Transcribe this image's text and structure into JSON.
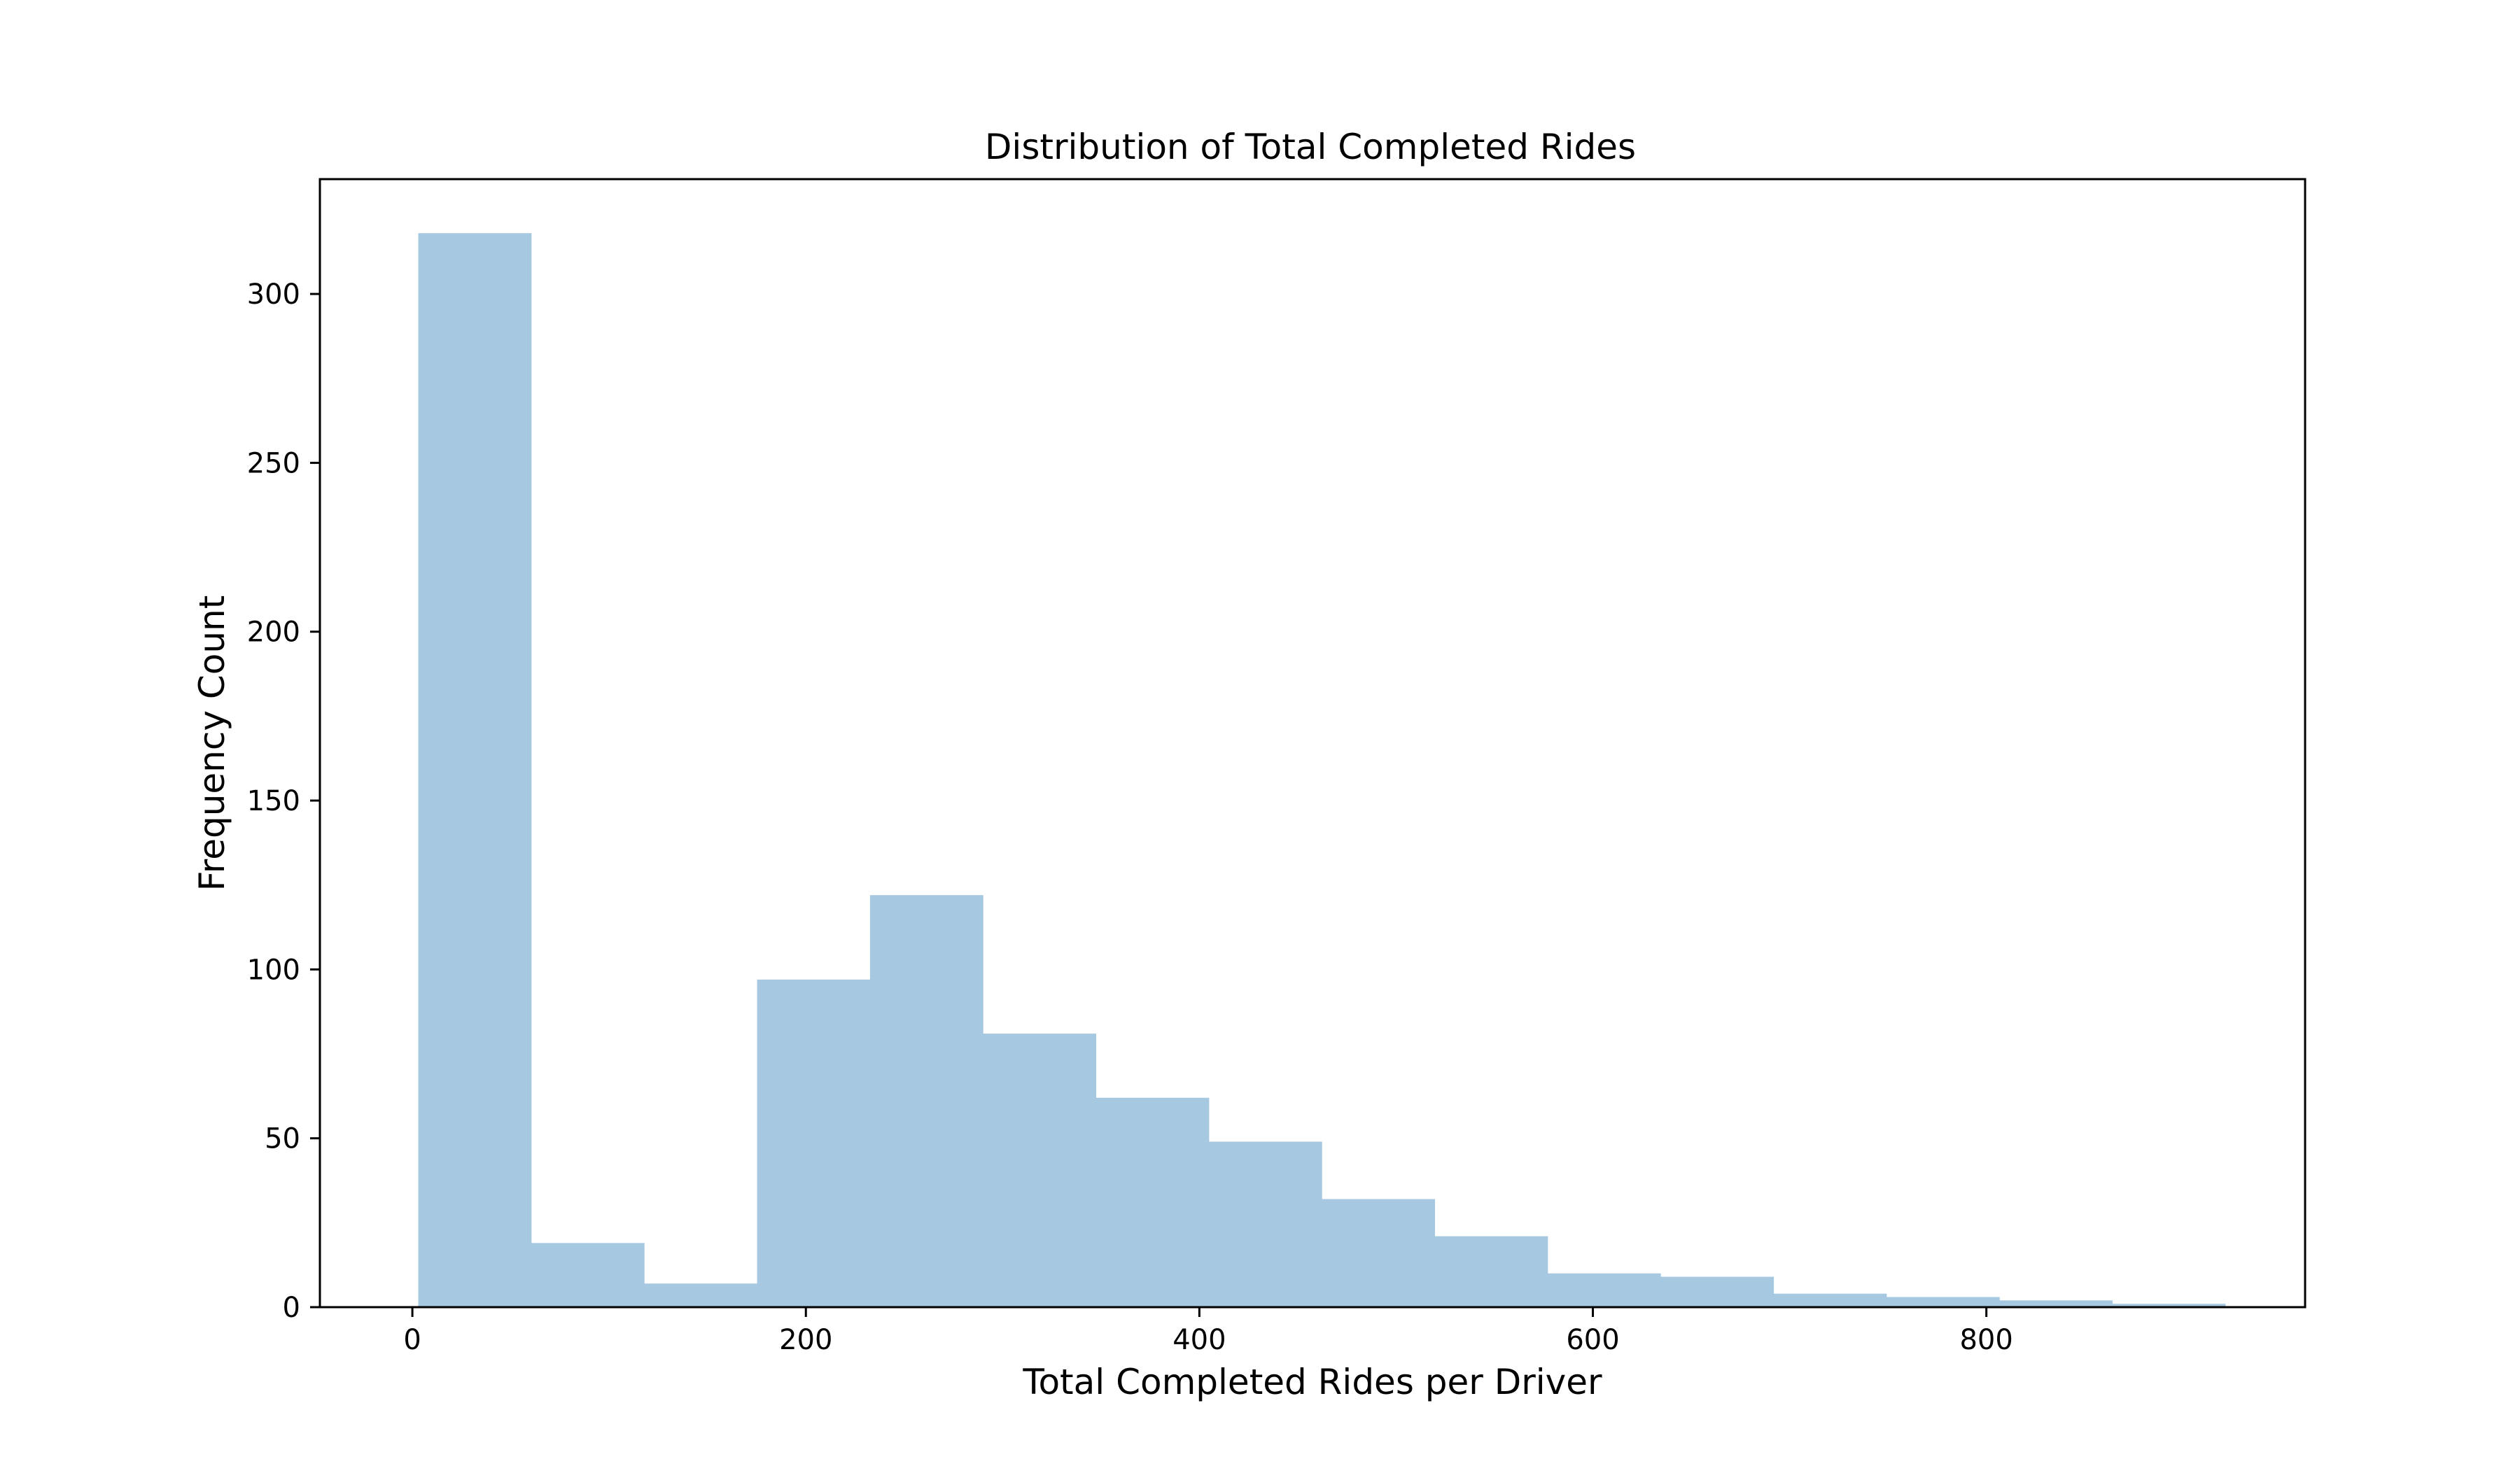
{
  "chart_data": {
    "type": "bar",
    "subtype": "histogram",
    "title": "Distribution of Total Completed Rides",
    "xlabel": "Total Completed Rides per Driver",
    "ylabel": "Frequency Count",
    "xlim": [
      -47,
      962
    ],
    "ylim": [
      0,
      334
    ],
    "xticks": [
      0,
      200,
      400,
      600,
      800
    ],
    "yticks": [
      0,
      50,
      100,
      150,
      200,
      250,
      300
    ],
    "bin_edges": [
      3,
      60.4,
      117.8,
      175.2,
      232.6,
      290,
      347.4,
      404.8,
      462.2,
      519.6,
      577,
      634.4,
      691.8,
      749.2,
      806.6,
      864,
      921.4
    ],
    "values": [
      318,
      19,
      7,
      97,
      122,
      81,
      62,
      49,
      32,
      21,
      10,
      9,
      4,
      3,
      2,
      1
    ],
    "bar_color": "#a6c8e0",
    "grid": false,
    "legend": "none"
  }
}
